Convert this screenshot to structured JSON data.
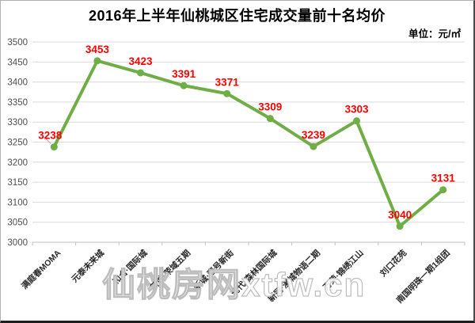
{
  "header": {
    "title": "2016年上半年仙桃城区住宅成交量前十名均价",
    "unit_label": "单位：元/㎡"
  },
  "watermark": {
    "text": "仙桃房网xtfw.cn"
  },
  "chart_data": {
    "type": "line",
    "title": "2016年上半年仙桃城区住宅成交量前十名均价",
    "unit": "元/㎡",
    "categories": [
      "满庭春MOMA",
      "元泰未来城",
      "和合·国际城",
      "新城·荣域五期",
      "新城·壹号新街",
      "现代·森林国际城",
      "新冠·漫城物语二期",
      "万荣·锦绣江山",
      "刘口花苑",
      "南国明珠一期1组团"
    ],
    "values": [
      3238,
      3453,
      3423,
      3391,
      3371,
      3309,
      3239,
      3303,
      3040,
      3131
    ],
    "ylim": [
      3000,
      3500
    ],
    "ytick_step": 50,
    "grid": true,
    "legend_position": "none",
    "data_labels": true,
    "colors": {
      "line": "#6fad47",
      "marker": "#6fad47",
      "data_label": "#ff0000",
      "gridline": "#d9d9d9",
      "axis": "#bfbfbf",
      "tick_label": "#4d4d4d",
      "category_label": "#262626",
      "leader_line": "#a6a6a6",
      "watermark_stroke": "#bdbdbd"
    }
  }
}
